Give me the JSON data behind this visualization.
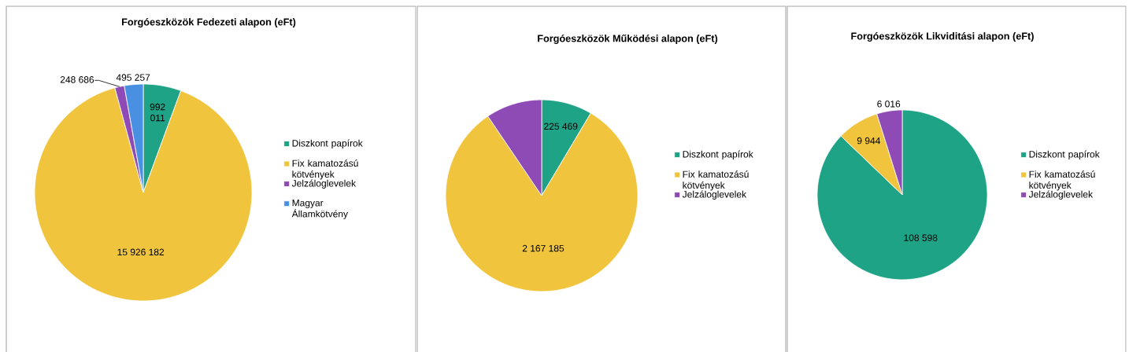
{
  "chart_data": [
    {
      "type": "pie",
      "title": "Forgóeszközök  Fedezeti alapon (eFt)",
      "categories": [
        "Diszkont papírok",
        "Fix kamatozású kötvények",
        "Jelzáloglevelek",
        "Magyar Államkötvény"
      ],
      "values": [
        992011,
        15926182,
        248686,
        495257
      ],
      "value_labels": [
        "992 011",
        "15 926 182",
        "248 686",
        "495 257"
      ],
      "colors": [
        "#1fa386",
        "#f0c43c",
        "#8e4bb5",
        "#4a90e2"
      ],
      "legend": "right"
    },
    {
      "type": "pie",
      "title": "Forgóeszközök  Működési alapon (eFt)",
      "categories": [
        "Diszkont papírok",
        "Fix kamatozású kötvények",
        "Jelzáloglevelek"
      ],
      "values": [
        225469,
        2167185,
        250000
      ],
      "value_labels": [
        "225 469",
        "2 167 185",
        null
      ],
      "colors": [
        "#1fa386",
        "#f0c43c",
        "#8e4bb5"
      ],
      "legend": "right"
    },
    {
      "type": "pie",
      "title": "Forgóeszközök  Likviditási alapon (eFt)",
      "categories": [
        "Diszkont papírok",
        "Fix kamatozású kötvények",
        "Jelzáloglevelek"
      ],
      "values": [
        108598,
        9944,
        6016
      ],
      "value_labels": [
        "108 598",
        "9 944",
        "6 016"
      ],
      "colors": [
        "#1fa386",
        "#f0c43c",
        "#8e4bb5"
      ],
      "legend": "right"
    }
  ]
}
